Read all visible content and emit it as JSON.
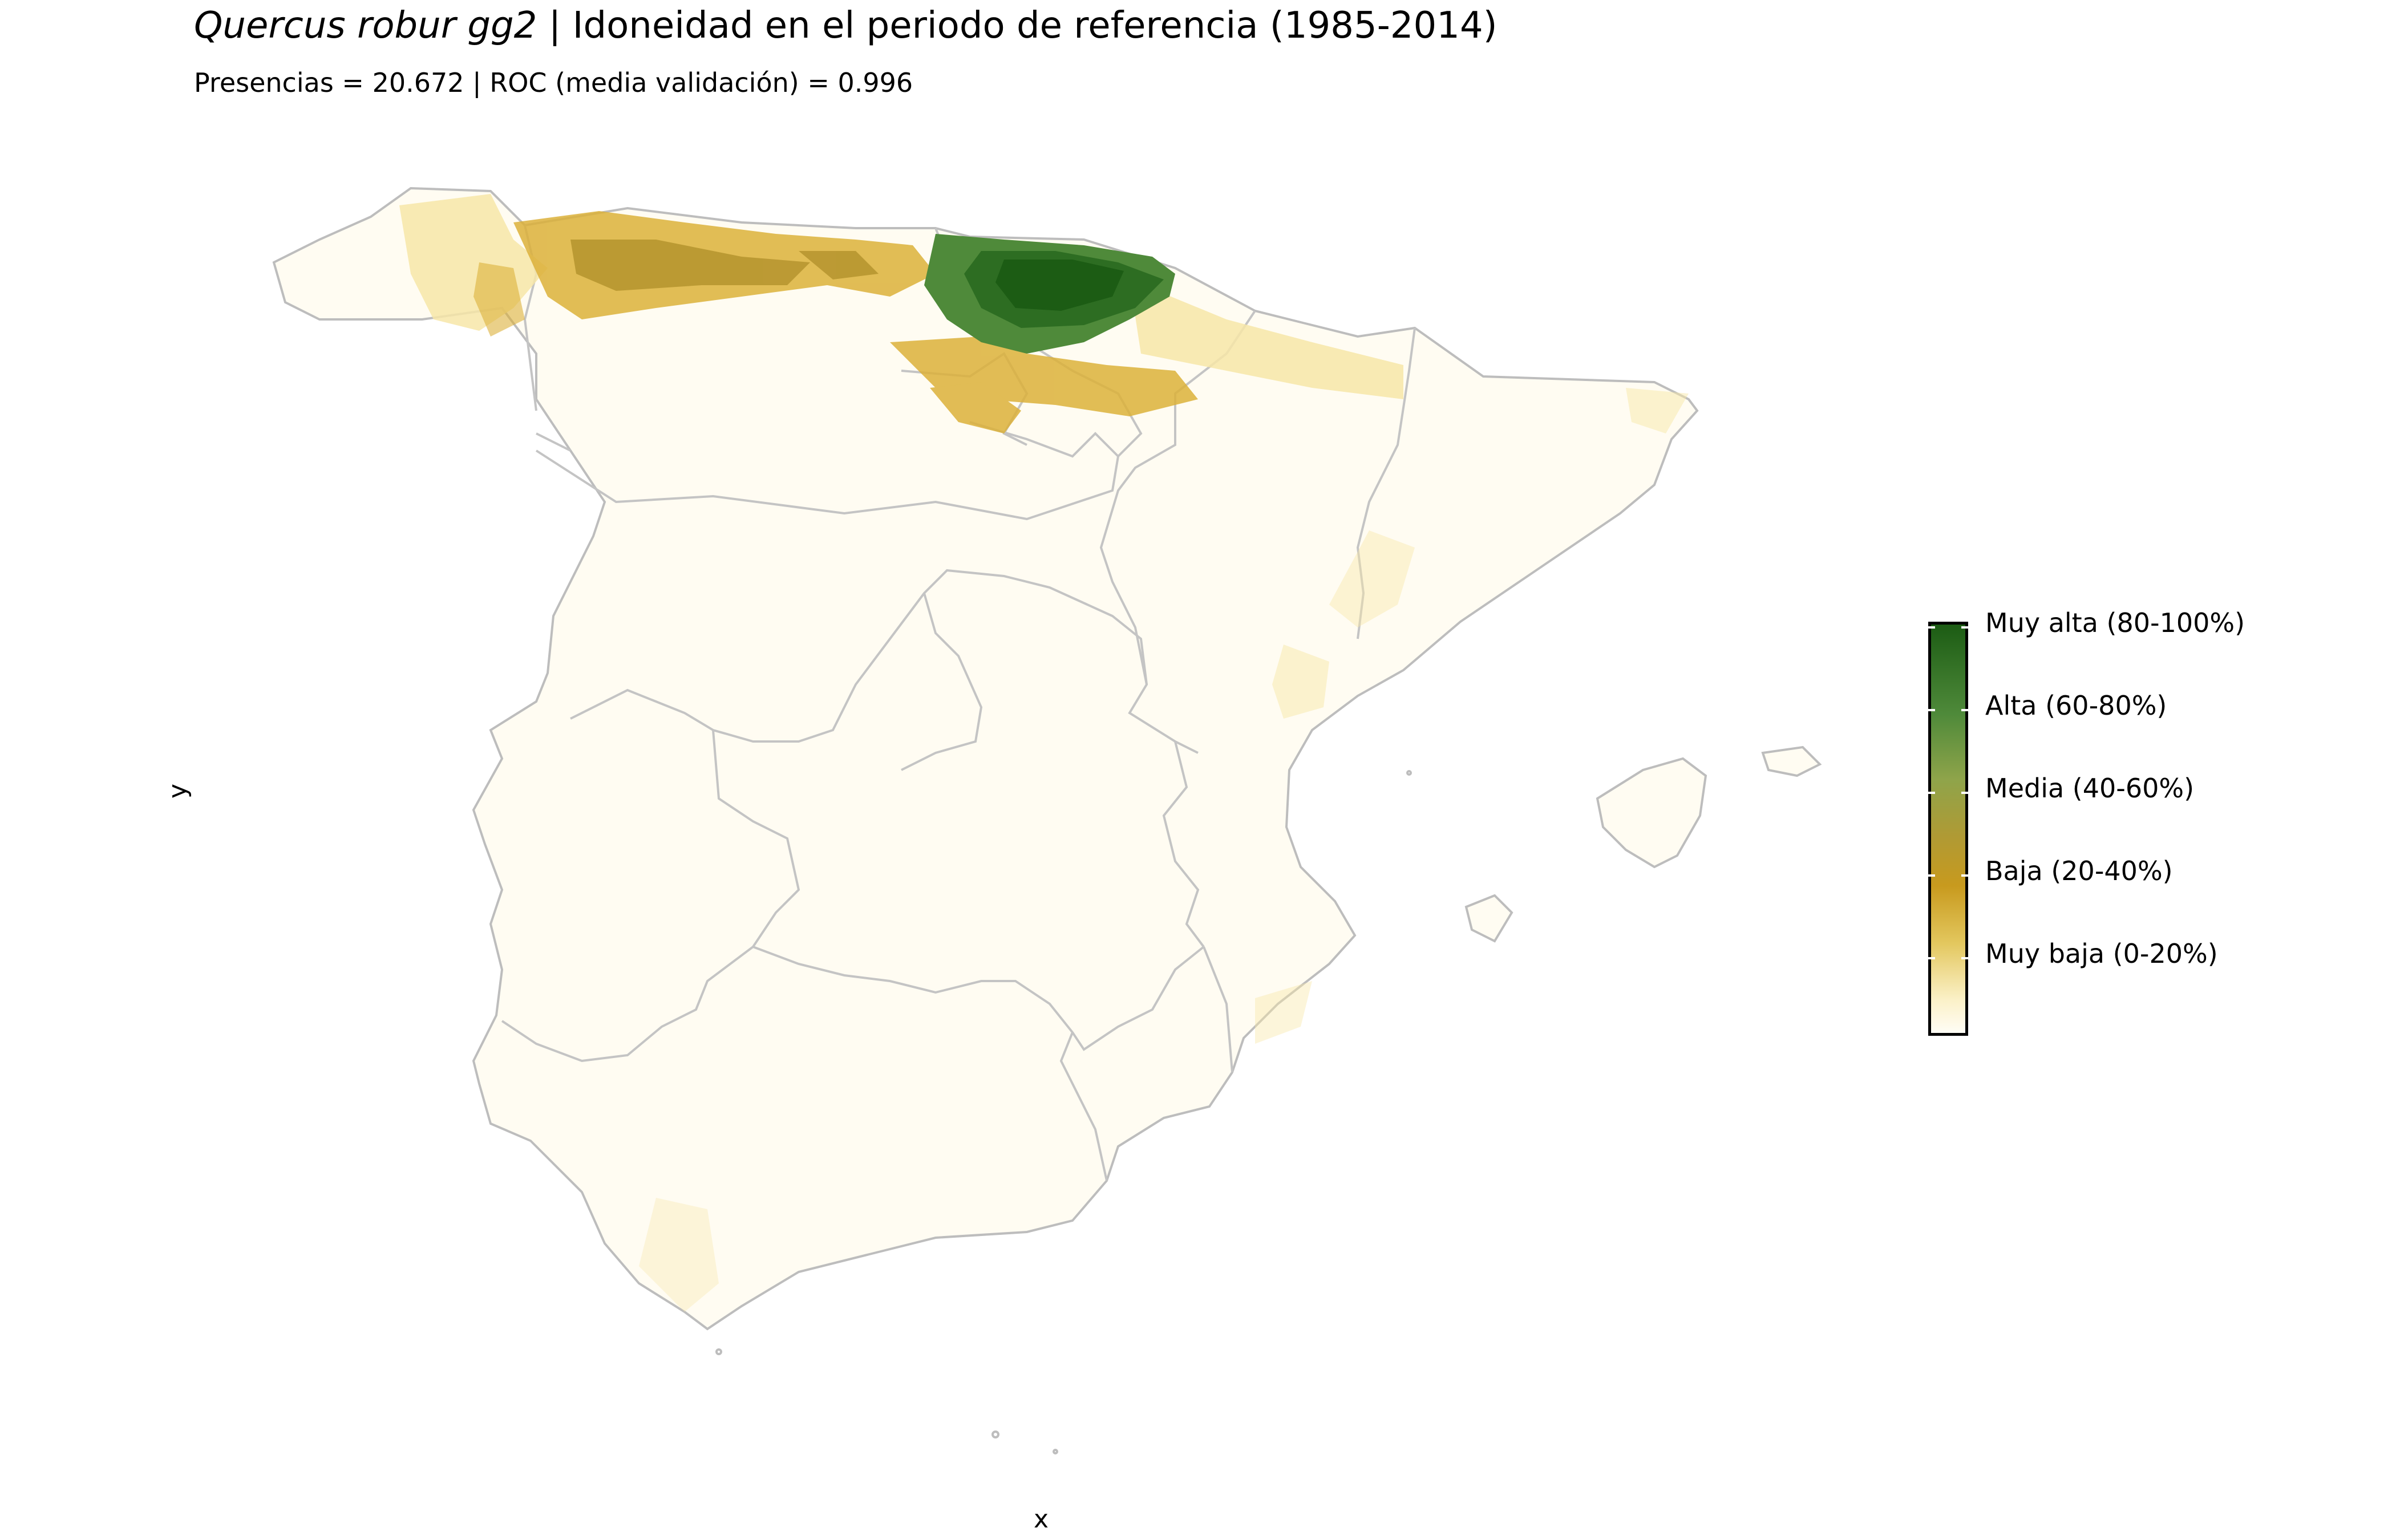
{
  "header": {
    "title_species": "Quercus robur gg2",
    "title_rest": " | Idoneidad en el periodo de referencia (1985-2014)",
    "subtitle": "Presencias = 20.672  |  ROC (media validación) = 0.996"
  },
  "axes": {
    "x_label": "x",
    "y_label": "y"
  },
  "legend": {
    "labels": [
      "Muy alta (80-100%)",
      "Alta (60-80%)",
      "Media (40-60%)",
      "Baja (20-40%)",
      "Muy baja (0-20%)"
    ],
    "colors": {
      "muy_alta": "#1c5c14",
      "alta": "#4f8a3a",
      "media": "#8fa44a",
      "baja": "#c89a1e",
      "muy_baja": "#fbf1c8"
    }
  },
  "colors": {
    "boundary": "#bdbdbd",
    "land": "#fffcf2"
  }
}
